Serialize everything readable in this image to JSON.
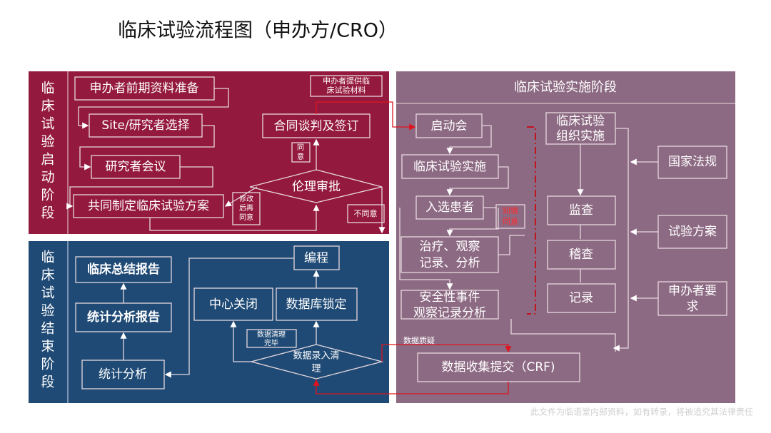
{
  "title": "临床试验流程图（申办方/CRO）",
  "colors": {
    "startup_panel": "#94193f",
    "closeout_panel": "#1f4a75",
    "execution_panel": "#8d6a83",
    "red_path": "#e0141e",
    "consent_text": "#ff2a2a"
  },
  "startup": {
    "label": [
      "临",
      "床",
      "试",
      "验",
      "启",
      "动",
      "阶",
      "段"
    ],
    "sponsor_prep": "申办者前期资料准备",
    "site_selection": "Site/研究者选择",
    "investigator_meeting": "研究者会议",
    "protocol": "共同制定临床试验方案",
    "contract": "合同谈判及签订",
    "materials": [
      "申办者提供临",
      "床试验材料"
    ],
    "agree": [
      "同",
      "意"
    ],
    "ethics": "伦理审批",
    "revise": [
      "修改",
      "后再",
      "同意"
    ],
    "disagree": "不同意"
  },
  "closeout": {
    "label": [
      "临",
      "床",
      "试",
      "验",
      "结",
      "束",
      "阶",
      "段"
    ],
    "final_report": "临床总结报告",
    "stats_report": "统计分析报告",
    "stats": "统计分析",
    "programming": "编程",
    "site_close": "中心关闭",
    "db_lock": "数据库锁定",
    "cleaning_done": [
      "数据清理",
      "完毕"
    ],
    "data_entry": [
      "数据录入清",
      "理"
    ]
  },
  "execution": {
    "header": "临床试验实施阶段",
    "kickoff": "启动会",
    "conduct": "临床试验实施",
    "enroll": "入选患者",
    "consent": [
      "知情",
      "同意"
    ],
    "treatment": [
      "治疗、观察",
      "记录、分析"
    ],
    "safety": [
      "安全性事件",
      "观察记录分析"
    ],
    "organize": [
      "临床试验",
      "组织实施"
    ],
    "monitoring": "监查",
    "audit": "稽查",
    "record": "记录",
    "regulations": "国家法规",
    "trial_protocol": "试验方案",
    "sponsor_req": [
      "申办者要",
      "求"
    ],
    "query": "数据质疑",
    "crf": "数据收集提交（CRF)"
  },
  "watermark": "此文件为临语堂内部资料，如有转录，将被追究其法律责任"
}
